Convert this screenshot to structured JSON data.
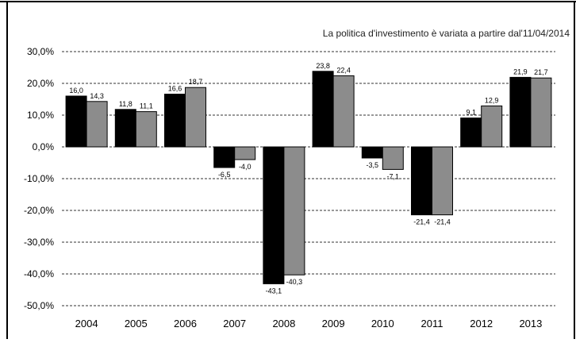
{
  "chart_data": {
    "type": "bar",
    "title": "La politica d'investimento è variata a partire dal'11/04/2014",
    "xlabel": "",
    "ylabel": "",
    "categories": [
      "2004",
      "2005",
      "2006",
      "2007",
      "2008",
      "2009",
      "2010",
      "2011",
      "2012",
      "2013"
    ],
    "series": [
      {
        "color": "#000000",
        "values": [
          16.0,
          11.8,
          16.6,
          -6.5,
          -43.1,
          23.8,
          -3.5,
          -21.4,
          9.1,
          21.9
        ],
        "labels": [
          "16,0",
          "11,8",
          "16,6",
          "-6,5",
          "-43,1",
          "23,8",
          "-3,5",
          "-21,4",
          "9,1",
          "21,9"
        ]
      },
      {
        "color": "#8c8c8c",
        "values": [
          14.3,
          11.1,
          18.7,
          -4.0,
          -40.3,
          22.4,
          -7.1,
          -21.4,
          12.9,
          21.7
        ],
        "labels": [
          "14,3",
          "11,1",
          "18,7",
          "-4,0",
          "-40,3",
          "22,4",
          "-7,1",
          "-21,4",
          "12,9",
          "21,7"
        ]
      }
    ],
    "ylim": [
      -50,
      30
    ],
    "yticks": [
      30,
      20,
      10,
      0,
      -10,
      -20,
      -30,
      -40,
      -50
    ],
    "ytick_labels": [
      "30,0%",
      "20,0%",
      "10,0%",
      "0,0%",
      "-10,0%",
      "-20,0%",
      "-30,0%",
      "-40,0%",
      "-50,0%"
    ],
    "grid": "horizontal dashed",
    "legend": "none"
  }
}
